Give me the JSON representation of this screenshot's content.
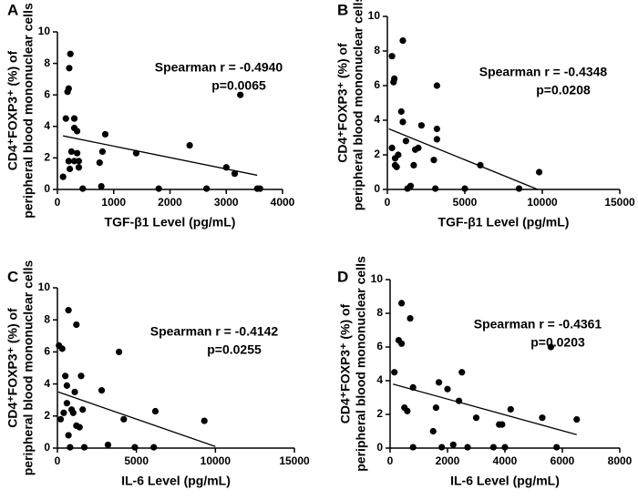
{
  "chart_data": [
    {
      "type": "scatter",
      "panel_label": "A",
      "color": "#000000",
      "x_label": "TGF-β1 Level (pg/mL)",
      "y_label": [
        "CD4⁺FOXP3⁺ (%) of",
        "peripheral blood mononuclear cells"
      ],
      "annotations": [
        "Spearman r = -0.4940",
        "p=0.0065"
      ],
      "xlim": [
        0,
        4000
      ],
      "xticks": [
        0,
        1000,
        2000,
        3000,
        4000
      ],
      "ylim": [
        0,
        10
      ],
      "yticks": [
        0,
        2,
        4,
        6,
        8,
        10
      ],
      "x": [
        100,
        150,
        180,
        200,
        210,
        230,
        200,
        250,
        220,
        300,
        300,
        350,
        350,
        380,
        380,
        450,
        300,
        750,
        780,
        800,
        850,
        1400,
        1800,
        2350,
        2650,
        3000,
        3150,
        3250,
        3550,
        3600
      ],
      "y": [
        0.8,
        4.5,
        6.2,
        6.4,
        7.7,
        8.6,
        1.8,
        2.4,
        1.3,
        4.5,
        3.9,
        3.7,
        2.3,
        1.8,
        1.4,
        0.05,
        1.8,
        1.7,
        0.2,
        2.4,
        3.5,
        2.3,
        0.05,
        2.8,
        0.05,
        1.4,
        1.0,
        6.0,
        0.05,
        0.05
      ],
      "fit": {
        "x": [
          100,
          3550
        ],
        "y": [
          3.4,
          0.9
        ]
      }
    },
    {
      "type": "scatter",
      "panel_label": "B",
      "color": "#000000",
      "x_label": "TGF-β1 Level  (pg/mL)",
      "y_label": [
        "CD4⁺FOXP3⁺ (%) of",
        "peripheral blood mononuclear cells"
      ],
      "annotations": [
        "Spearman r = -0.4348",
        "p=0.0208"
      ],
      "xlim": [
        0,
        15000
      ],
      "xticks": [
        0,
        5000,
        10000,
        15000
      ],
      "ylim": [
        0,
        10
      ],
      "yticks": [
        0,
        2,
        4,
        6,
        8,
        10
      ],
      "x": [
        300,
        400,
        450,
        300,
        500,
        600,
        900,
        1000,
        1000,
        1200,
        1300,
        1500,
        1700,
        1800,
        2000,
        2200,
        3000,
        3200,
        3200,
        3200,
        3100,
        5000,
        6000,
        8500,
        9800,
        500,
        700
      ],
      "y": [
        7.7,
        6.2,
        6.4,
        2.4,
        1.8,
        1.3,
        4.5,
        3.9,
        8.6,
        2.8,
        0.05,
        0.2,
        1.4,
        2.3,
        2.4,
        3.7,
        1.7,
        3.5,
        2.9,
        6.0,
        0.05,
        0.05,
        1.4,
        0.05,
        1.0,
        1.4,
        2.0
      ],
      "fit": {
        "x": [
          100,
          9700
        ],
        "y": [
          3.5,
          0
        ]
      }
    },
    {
      "type": "scatter",
      "panel_label": "C",
      "color": "#000000",
      "x_label": "IL-6 Level (pg/mL)",
      "y_label": [
        "CD4⁺FOXP3⁺ (%) of",
        "peripheral blood mononuclear cells"
      ],
      "annotations": [
        "Spearman r = -0.4142",
        "p=0.0255"
      ],
      "xlim": [
        0,
        15000
      ],
      "xticks": [
        0,
        5000,
        10000,
        15000
      ],
      "ylim": [
        0,
        10
      ],
      "yticks": [
        0,
        2,
        4,
        6,
        8,
        10
      ],
      "x": [
        100,
        300,
        500,
        600,
        600,
        700,
        900,
        1000,
        1100,
        1200,
        1200,
        1400,
        1500,
        1600,
        1700,
        800,
        200,
        2800,
        3200,
        3900,
        4200,
        4900,
        6100,
        6200,
        9300,
        400,
        700
      ],
      "y": [
        6.4,
        6.2,
        4.5,
        3.9,
        2.8,
        8.6,
        2.4,
        2.2,
        3.5,
        7.7,
        1.4,
        1.3,
        4.5,
        2.4,
        0.05,
        0.05,
        1.8,
        3.6,
        0.2,
        6.0,
        1.8,
        0.05,
        0.05,
        2.3,
        1.7,
        2.2,
        0.8
      ],
      "fit": {
        "x": [
          50,
          10000
        ],
        "y": [
          3.5,
          0.1
        ]
      }
    },
    {
      "type": "scatter",
      "panel_label": "D",
      "color": "#000000",
      "x_label": "IL-6 Level (pg/mL)",
      "y_label": [
        "CD4⁺FOXP3⁺ (%) of",
        "peripheral blood mononuclear cells"
      ],
      "annotations": [
        "Spearman r = -0.4361",
        "p=0.0203"
      ],
      "xlim": [
        0,
        8000
      ],
      "xticks": [
        0,
        2000,
        4000,
        6000,
        8000
      ],
      "ylim": [
        0,
        10
      ],
      "yticks": [
        0,
        2,
        4,
        6,
        8,
        10
      ],
      "x": [
        150,
        300,
        400,
        400,
        500,
        600,
        700,
        800,
        800,
        1500,
        1600,
        1700,
        1800,
        2000,
        2200,
        2400,
        2500,
        2700,
        3000,
        3600,
        3800,
        3900,
        4000,
        4200,
        5300,
        5600,
        5800,
        6500
      ],
      "y": [
        4.5,
        6.4,
        8.6,
        6.2,
        2.4,
        2.2,
        7.7,
        3.6,
        0.05,
        1.0,
        2.4,
        3.9,
        0.05,
        3.5,
        0.2,
        2.8,
        4.5,
        0.05,
        1.8,
        0.05,
        1.4,
        1.4,
        0.05,
        2.3,
        1.8,
        6.0,
        0.05,
        1.7
      ],
      "fit": {
        "x": [
          100,
          6500
        ],
        "y": [
          3.8,
          0.8
        ]
      }
    }
  ]
}
